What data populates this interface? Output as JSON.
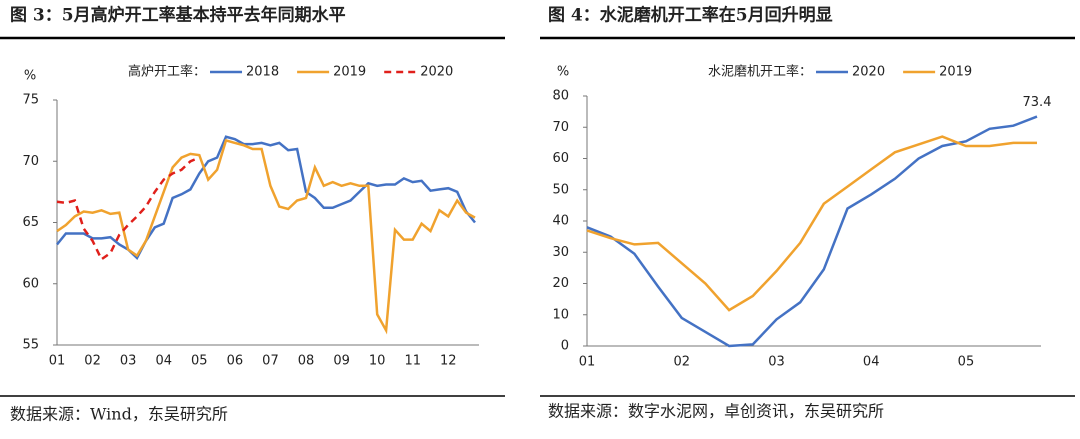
{
  "chart_data": [
    {
      "type": "line",
      "title": "图 3：5月高炉开工率基本持平去年同期水平",
      "y_unit": "%",
      "legend_title": "高炉开工率：",
      "source": "数据来源：Wind，东吴研究所",
      "categories": [
        "01",
        null,
        null,
        null,
        "02",
        null,
        null,
        null,
        "03",
        null,
        null,
        null,
        "04",
        null,
        null,
        null,
        "05",
        null,
        null,
        null,
        "06",
        null,
        null,
        null,
        "07",
        null,
        null,
        null,
        "08",
        null,
        null,
        null,
        "09",
        null,
        null,
        null,
        "10",
        null,
        null,
        null,
        "11",
        null,
        null,
        null,
        "12",
        null,
        null,
        null
      ],
      "ylim": [
        55,
        75
      ],
      "yticks": [
        55,
        60,
        65,
        70,
        75
      ],
      "series": [
        {
          "name": "2018",
          "color": "#4472c4",
          "linestyle": "solid",
          "values": [
            63.2,
            64.1,
            64.1,
            64.1,
            63.7,
            63.7,
            63.8,
            63.2,
            62.8,
            62.1,
            63.5,
            64.6,
            64.9,
            67.0,
            67.3,
            67.7,
            69.0,
            70.0,
            70.3,
            72.0,
            71.8,
            71.4,
            71.4,
            71.5,
            71.3,
            71.5,
            70.9,
            71.0,
            67.5,
            67.0,
            66.2,
            66.2,
            66.5,
            66.8,
            67.5,
            68.2,
            68.0,
            68.1,
            68.1,
            68.6,
            68.3,
            68.4,
            67.6,
            67.7,
            67.8,
            67.5,
            65.9,
            65.0
          ]
        },
        {
          "name": "2019",
          "color": "#f0a22e",
          "linestyle": "solid",
          "values": [
            64.3,
            64.8,
            65.5,
            65.9,
            65.8,
            66.0,
            65.7,
            65.8,
            62.8,
            62.3,
            63.5,
            65.5,
            67.5,
            69.5,
            70.3,
            70.6,
            70.5,
            68.5,
            69.3,
            71.7,
            71.5,
            71.3,
            71.0,
            71.0,
            68.0,
            66.3,
            66.1,
            66.8,
            67.0,
            69.5,
            68.0,
            68.3,
            68.0,
            68.2,
            68.0,
            68.0,
            57.5,
            56.2,
            64.4,
            63.6,
            63.6,
            64.9,
            64.3,
            66.0,
            65.5,
            66.8,
            65.8,
            65.4
          ]
        },
        {
          "name": "2020",
          "color": "#e0201b",
          "linestyle": "dashed",
          "values": [
            66.7,
            66.6,
            66.8,
            64.5,
            63.5,
            62.0,
            62.5,
            64.0,
            64.8,
            65.5,
            66.3,
            67.5,
            68.5,
            69.0,
            69.3,
            70.0,
            70.3,
            null,
            null,
            null,
            null,
            null,
            null,
            null,
            null,
            null,
            null,
            null,
            null,
            null,
            null,
            null,
            null,
            null,
            null,
            null,
            null,
            null,
            null,
            null,
            null,
            null,
            null,
            null,
            null,
            null,
            null,
            null
          ]
        }
      ]
    },
    {
      "type": "line",
      "title": "图 4：水泥磨机开工率在5月回升明显",
      "y_unit": "%",
      "legend_title": "水泥磨机开工率：",
      "source": "数据来源：数字水泥网，卓创资讯，东吴研究所",
      "categories": [
        "01",
        null,
        null,
        null,
        "02",
        null,
        null,
        null,
        "03",
        null,
        null,
        null,
        "04",
        null,
        null,
        null,
        "05",
        null,
        null,
        null
      ],
      "ylim": [
        0,
        80
      ],
      "yticks": [
        0,
        10,
        20,
        30,
        40,
        50,
        60,
        70,
        80
      ],
      "series": [
        {
          "name": "2020",
          "color": "#4472c4",
          "linestyle": "solid",
          "values": [
            38,
            35,
            29.5,
            19,
            9,
            4.5,
            0,
            0.5,
            8.5,
            14,
            24.5,
            44,
            48.5,
            53.5,
            60,
            64,
            65.5,
            69.5,
            70.5,
            73.4
          ]
        },
        {
          "name": "2019",
          "color": "#f0a22e",
          "linestyle": "solid",
          "values": [
            37,
            34.5,
            32.5,
            33,
            26.5,
            20,
            11.5,
            16,
            24,
            33,
            45.5,
            51,
            56.5,
            62,
            64.5,
            67,
            64,
            64,
            65,
            65
          ]
        }
      ],
      "annotation_index": 19
    }
  ]
}
